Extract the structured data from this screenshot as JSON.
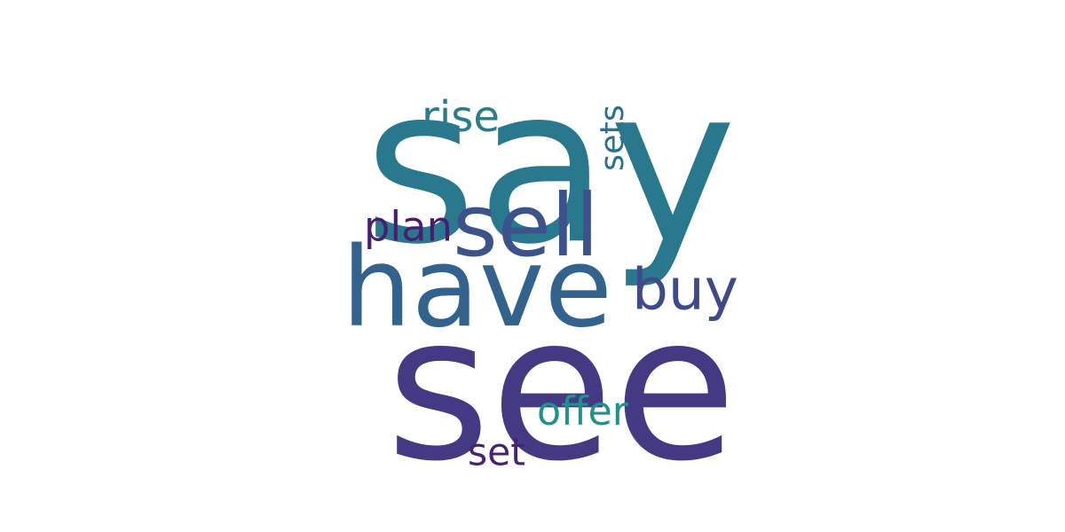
{
  "word_cloud": {
    "words": [
      {
        "key": "say",
        "text": "say",
        "color": "#2a788e"
      },
      {
        "key": "see",
        "text": "see",
        "color": "#443983"
      },
      {
        "key": "have",
        "text": "have",
        "color": "#33638d"
      },
      {
        "key": "sell",
        "text": "sell",
        "color": "#3b528b"
      },
      {
        "key": "buy",
        "text": "buy",
        "color": "#3e4a89"
      },
      {
        "key": "plan",
        "text": "plan",
        "color": "#481f70"
      },
      {
        "key": "rise",
        "text": "rise",
        "color": "#287c8e"
      },
      {
        "key": "sets",
        "text": "sets",
        "color": "#2c718e"
      },
      {
        "key": "offer",
        "text": "offer",
        "color": "#21918c"
      },
      {
        "key": "set",
        "text": "set",
        "color": "#482374"
      }
    ]
  }
}
